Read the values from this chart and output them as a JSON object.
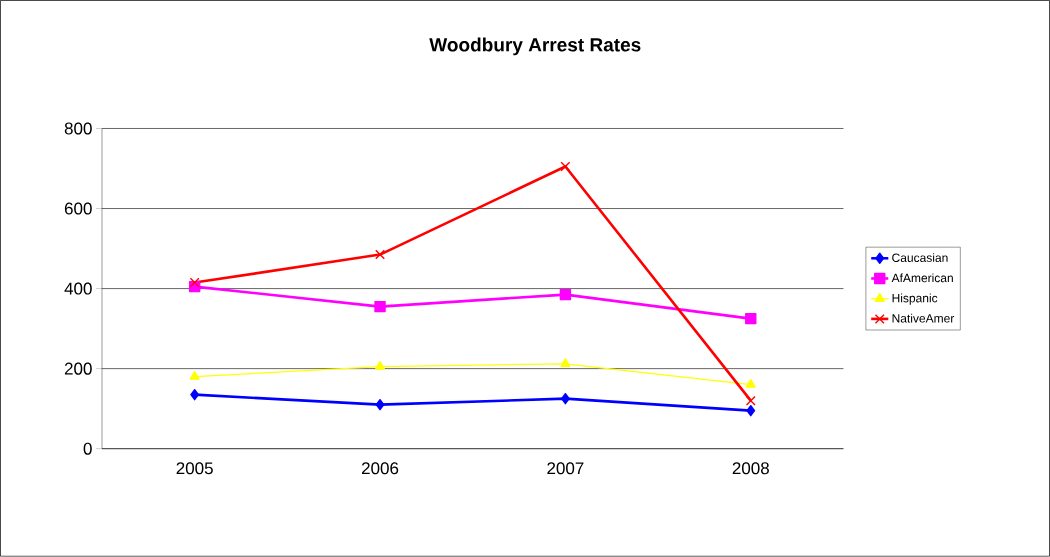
{
  "chart_data": {
    "type": "line",
    "title": "Woodbury Arrest Rates",
    "categories": [
      "2005",
      "2006",
      "2007",
      "2008"
    ],
    "series": [
      {
        "name": "Caucasian",
        "color": "#0000ff",
        "marker": "diamond",
        "values": [
          135,
          110,
          125,
          95
        ]
      },
      {
        "name": "AfAmerican",
        "color": "#ff00ff",
        "marker": "square",
        "values": [
          405,
          355,
          385,
          325
        ]
      },
      {
        "name": "Hispanic",
        "color": "#ffff00",
        "marker": "triangle",
        "values": [
          180,
          205,
          212,
          160
        ]
      },
      {
        "name": "NativeAmer",
        "color": "#ff0000",
        "marker": "cross",
        "values": [
          415,
          485,
          705,
          120
        ]
      }
    ],
    "ylim": [
      0,
      800
    ],
    "yticks": [
      0,
      200,
      400,
      600,
      800
    ],
    "grid": "y",
    "legend": "right"
  }
}
